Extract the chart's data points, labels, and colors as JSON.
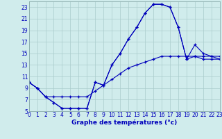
{
  "xlabel": "Graphe des températures (°c)",
  "background_color": "#d0ecec",
  "line_color": "#0000bb",
  "grid_color": "#aacccc",
  "xlim": [
    0,
    23
  ],
  "ylim": [
    5,
    24
  ],
  "xticks": [
    0,
    1,
    2,
    3,
    4,
    5,
    6,
    7,
    8,
    9,
    10,
    11,
    12,
    13,
    14,
    15,
    16,
    17,
    18,
    19,
    20,
    21,
    22,
    23
  ],
  "yticks": [
    5,
    7,
    9,
    11,
    13,
    15,
    17,
    19,
    21,
    23
  ],
  "line1_x": [
    0,
    1,
    2,
    3,
    4,
    5,
    6,
    7,
    8,
    9,
    10,
    11,
    12,
    13,
    14,
    15,
    16,
    17,
    18,
    19,
    20,
    21,
    22,
    23
  ],
  "line1_y": [
    10,
    9,
    7.5,
    6.5,
    5.5,
    5.5,
    5.5,
    5.5,
    10,
    9.5,
    13,
    15,
    17.5,
    19.5,
    22,
    23.5,
    23.5,
    23,
    19.5,
    14,
    14.5,
    14,
    14,
    14
  ],
  "line2_x": [
    0,
    1,
    2,
    3,
    4,
    5,
    6,
    7,
    8,
    9,
    10,
    11,
    12,
    13,
    14,
    15,
    16,
    17,
    18,
    19,
    20,
    21,
    22,
    23
  ],
  "line2_y": [
    10,
    9,
    7.5,
    6.5,
    5.5,
    5.5,
    5.5,
    5.5,
    10,
    9.5,
    13,
    15,
    17.5,
    19.5,
    22,
    23.5,
    23.5,
    23,
    19.5,
    14,
    16.5,
    15,
    14.5,
    14
  ],
  "line3_x": [
    0,
    1,
    2,
    3,
    4,
    5,
    6,
    7,
    8,
    9,
    10,
    11,
    12,
    13,
    14,
    15,
    16,
    17,
    18,
    19,
    20,
    21,
    22,
    23
  ],
  "line3_y": [
    10,
    9,
    7.5,
    7.5,
    7.5,
    7.5,
    7.5,
    7.5,
    8.5,
    9.5,
    10.5,
    11.5,
    12.5,
    13,
    13.5,
    14,
    14.5,
    14.5,
    14.5,
    14.5,
    14.5,
    14.5,
    14.5,
    14.5
  ],
  "tick_fontsize": 5.5,
  "xlabel_fontsize": 6.5
}
